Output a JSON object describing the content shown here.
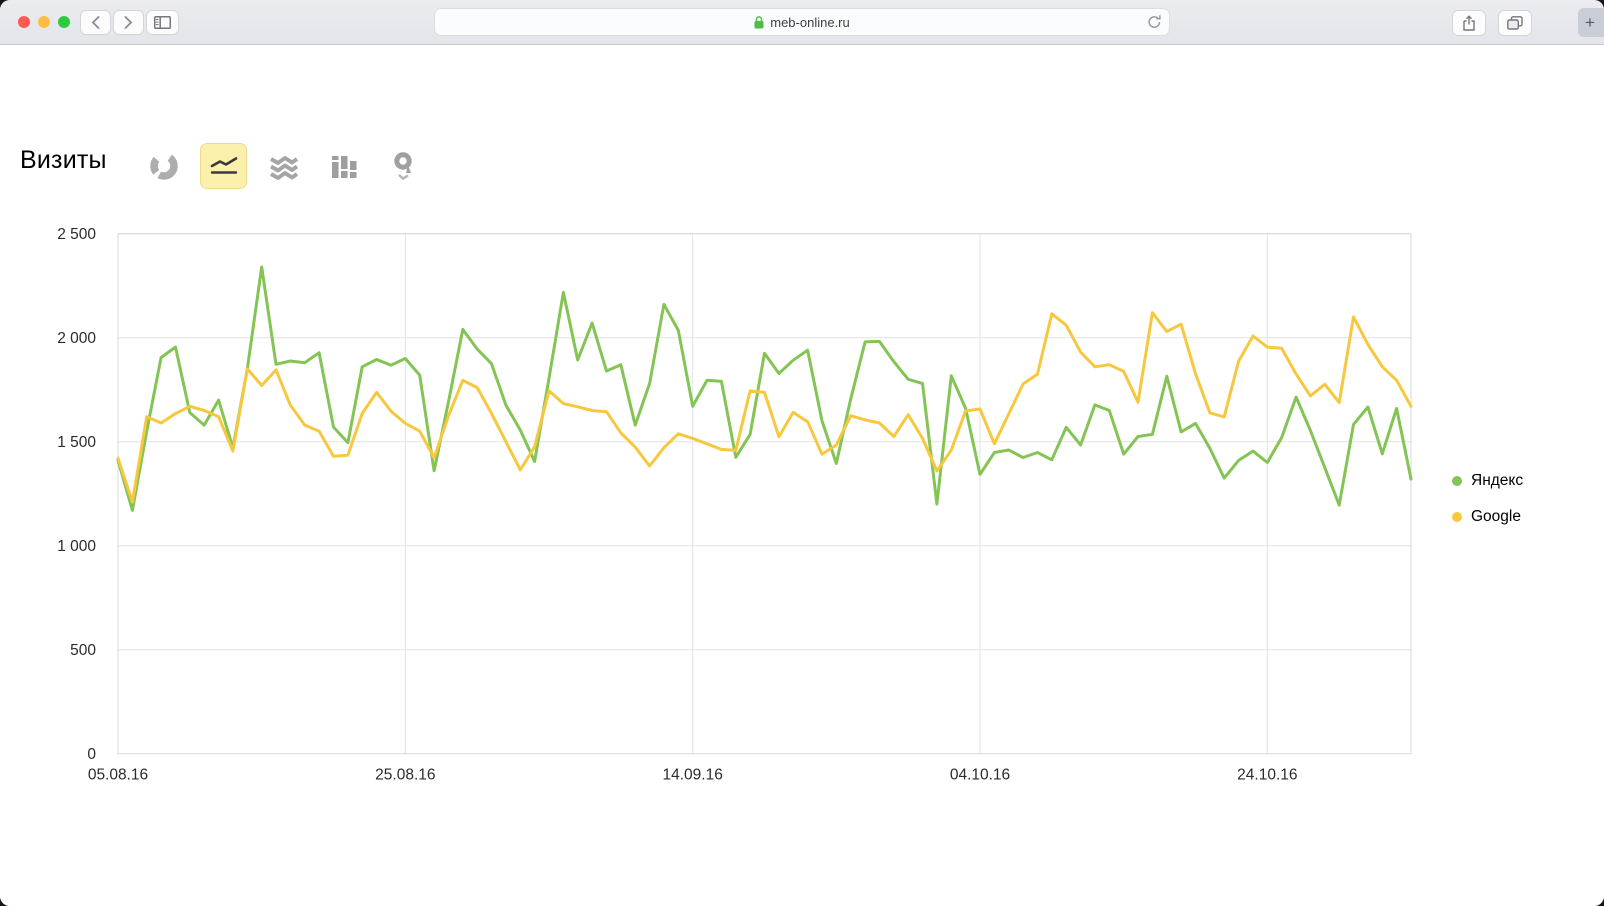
{
  "browser": {
    "url": "meb-online.ru",
    "new_tab_label": "+",
    "traffic_light_colors": [
      "#FB5B51",
      "#FDBE41",
      "#2FC841"
    ],
    "icons": [
      "back-chevron",
      "forward-chevron",
      "sidebar-toggle",
      "lock",
      "reload",
      "share",
      "tabs-overview",
      "new-tab-plus"
    ]
  },
  "page": {
    "title": "Визиты",
    "chart_type_buttons": [
      {
        "icon": "pie-chart-icon",
        "selected": false
      },
      {
        "icon": "line-chart-icon",
        "selected": true
      },
      {
        "icon": "stacked-area-icon",
        "selected": false
      },
      {
        "icon": "bar-chart-icon",
        "selected": false
      },
      {
        "icon": "map-pin-icon",
        "selected": false
      }
    ],
    "selected_button_bg": "#FBF0AC"
  },
  "chart_data": {
    "type": "line",
    "title": "Визиты",
    "grid": true,
    "legend_position": "right",
    "ylim": [
      0,
      2500
    ],
    "y_ticks": [
      0,
      500,
      1000,
      1500,
      2000,
      2500
    ],
    "y_tick_labels": [
      "0",
      "500",
      "1 000",
      "1 500",
      "2 000",
      "2 500"
    ],
    "x_tick_labels": [
      "05.08.16",
      "25.08.16",
      "14.09.16",
      "04.10.16",
      "24.10.16"
    ],
    "x_tick_day_index": [
      0,
      20,
      40,
      60,
      80
    ],
    "num_points": 91,
    "x_is_daily_dates": true,
    "series": [
      {
        "name": "Яндекс",
        "color": "#84C455",
        "values": [
          1410,
          1170,
          1550,
          1905,
          1955,
          1640,
          1580,
          1700,
          1470,
          1850,
          2340,
          1872,
          1888,
          1880,
          1928,
          1570,
          1495,
          1860,
          1895,
          1868,
          1900,
          1820,
          1360,
          1690,
          2040,
          1945,
          1875,
          1676,
          1556,
          1405,
          1805,
          2218,
          1893,
          2070,
          1840,
          1870,
          1580,
          1780,
          2160,
          2035,
          1670,
          1795,
          1790,
          1425,
          1535,
          1925,
          1828,
          1892,
          1940,
          1600,
          1395,
          1705,
          1980,
          1982,
          1885,
          1800,
          1780,
          1200,
          1817,
          1660,
          1343,
          1448,
          1460,
          1424,
          1448,
          1413,
          1569,
          1484,
          1677,
          1650,
          1440,
          1525,
          1535,
          1815,
          1547,
          1588,
          1468,
          1325,
          1410,
          1455,
          1400,
          1520,
          1715,
          1554,
          1375,
          1195,
          1583,
          1667,
          1442,
          1660,
          1320
        ]
      },
      {
        "name": "Google",
        "color": "#F7C83E",
        "values": [
          1420,
          1210,
          1620,
          1590,
          1635,
          1670,
          1650,
          1620,
          1455,
          1850,
          1770,
          1845,
          1675,
          1580,
          1550,
          1430,
          1435,
          1636,
          1737,
          1647,
          1588,
          1551,
          1423,
          1623,
          1795,
          1760,
          1636,
          1500,
          1364,
          1476,
          1745,
          1683,
          1668,
          1650,
          1644,
          1543,
          1474,
          1383,
          1471,
          1538,
          1516,
          1490,
          1463,
          1458,
          1744,
          1737,
          1524,
          1641,
          1596,
          1440,
          1484,
          1625,
          1605,
          1590,
          1525,
          1630,
          1516,
          1359,
          1460,
          1648,
          1657,
          1490,
          1633,
          1778,
          1825,
          2115,
          2060,
          1931,
          1860,
          1870,
          1838,
          1690,
          2120,
          2030,
          2065,
          1827,
          1639,
          1619,
          1887,
          2008,
          1955,
          1949,
          1825,
          1720,
          1776,
          1688,
          2100,
          1968,
          1860,
          1795,
          1670
        ]
      }
    ],
    "grid_color": "#E3E3E3",
    "border_color": "#D8D8D8",
    "tick_label_color": "#2B2B2B"
  }
}
